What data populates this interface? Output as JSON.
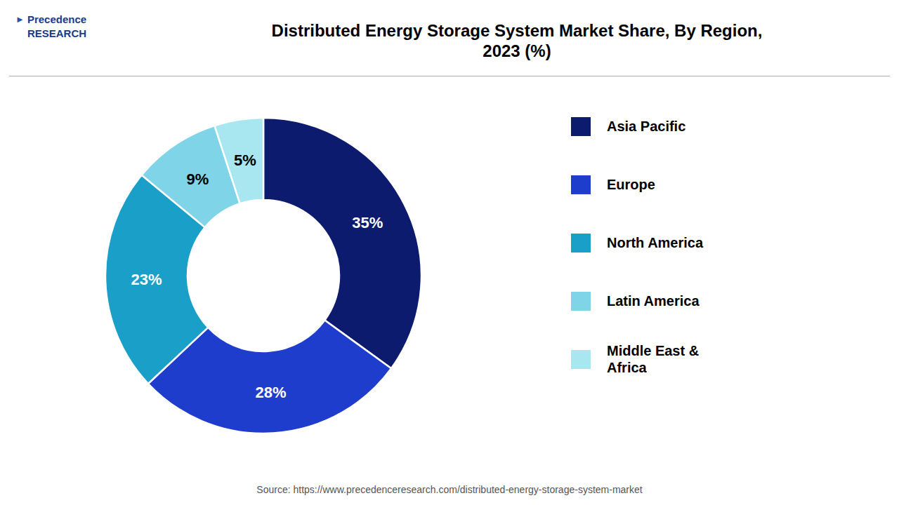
{
  "chart_data": {
    "type": "pie",
    "title": "Distributed Energy Storage System Market Share, By Region,\n2023 (%)",
    "categories": [
      "Asia Pacific",
      "Europe",
      "North America",
      "Latin America",
      "Middle East &\nAfrica"
    ],
    "values": [
      35,
      28,
      23,
      9,
      5
    ],
    "value_labels": [
      "35%",
      "28%",
      "23%",
      "9%",
      "5%"
    ],
    "data_labels": true,
    "colors": [
      "#0d1b6e",
      "#1f3dcc",
      "#1aa0c8",
      "#7fd4e8",
      "#a8e6f0"
    ],
    "legend": "right",
    "annotations": [
      "Precedence\nRESEARCH",
      "►",
      "Source: https://www.precedenceresearch.com/distributed-energy-storage-system-market"
    ]
  }
}
